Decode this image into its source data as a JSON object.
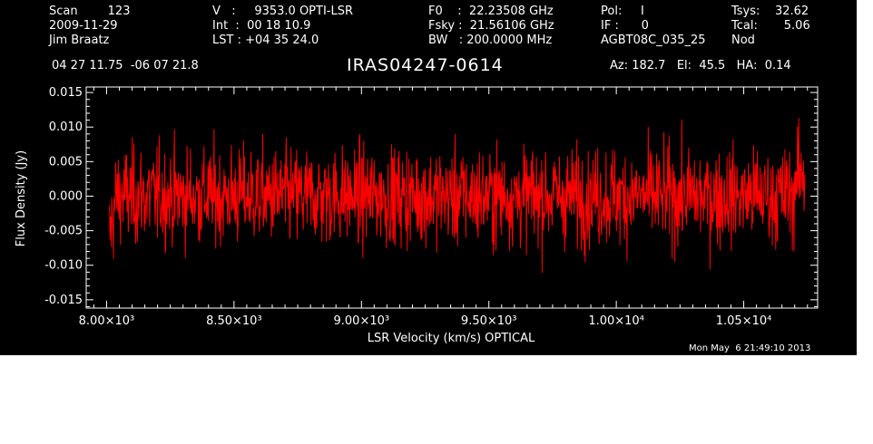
{
  "header": {
    "col1": {
      "scan": "Scan        123",
      "date": "2009-11-29",
      "observer": "Jim Braatz"
    },
    "col2": {
      "velocity": "V   :     9353.0 OPTI-LSR",
      "int": "Int  :  00 18 10.9",
      "lst": "LST : +04 35 24.0"
    },
    "col3": {
      "f0": "F0    :  22.23508 GHz",
      "fsky": "Fsky :  21.56106 GHz",
      "bw": "BW   : 200.0000 MHz"
    },
    "col4": {
      "pol": "Pol:     I",
      "if": "IF :      0",
      "project": "AGBT08C_035_25"
    },
    "col5": {
      "tsys": "Tsys:    32.62",
      "tcal": "Tcal:       5.06",
      "mode": "Nod"
    },
    "coords": "04 27 11.75  -06 07 21.8",
    "source": "IRAS04247-0614",
    "pointing": "Az: 182.7   El:  45.5   HA:  0.14"
  },
  "timestamp": "Mon May  6 21:49:10 2013",
  "chart_data": {
    "type": "line",
    "title": "IRAS04247-0614",
    "xlabel": "LSR Velocity (km/s) OPTICAL",
    "ylabel": "Flux Density (Jy)",
    "xlim": [
      7920,
      10790
    ],
    "ylim": [
      -0.0162,
      0.0158
    ],
    "xticks": [
      8000,
      8500,
      9000,
      9500,
      10000,
      10500
    ],
    "xtick_labels": [
      "8.00×10³",
      "8.50×10³",
      "9.00×10³",
      "9.50×10³",
      "1.00×10⁴",
      "1.05×10⁴"
    ],
    "yticks": [
      -0.015,
      -0.01,
      -0.005,
      0,
      0.005,
      0.01,
      0.015
    ],
    "ytick_labels": [
      "-0.015",
      "-0.010",
      "-0.005",
      "0.000",
      "0.005",
      "0.010",
      "0.015"
    ],
    "grid": false,
    "series": [
      {
        "color": "#ff0000",
        "x_start": 8010,
        "x_end": 10740,
        "noise_rms": 0.0035,
        "n_points": 1600,
        "y_min": -0.0135,
        "y_max": 0.0113
      }
    ]
  },
  "colors": {
    "background": "#000000",
    "trace": "#ff0000",
    "axes": "#ffffff"
  }
}
